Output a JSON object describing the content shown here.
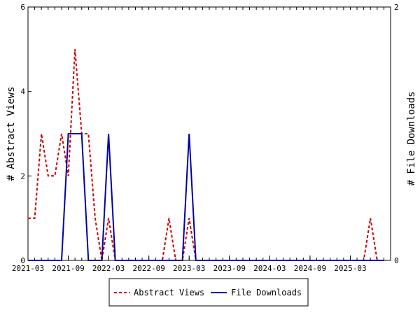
{
  "chart_data": {
    "type": "line",
    "title": "",
    "y_left": {
      "label": "# Abstract Views",
      "range": [
        0,
        6
      ],
      "ticks": [
        "0",
        "2",
        "4",
        "6"
      ]
    },
    "y_right": {
      "label": "# File Downloads",
      "range": [
        0,
        2
      ],
      "ticks": [
        "0",
        "2"
      ]
    },
    "x": {
      "start": "2021-03",
      "end": "2025-08",
      "tick_labels": [
        "2021-03",
        "2021-09",
        "2022-03",
        "2022-09",
        "2023-03",
        "2023-09",
        "2024-03",
        "2024-09",
        "2025-03"
      ]
    },
    "legend": {
      "placement": "bottom",
      "entries": [
        "Abstract Views",
        "File Downloads"
      ]
    },
    "colors": {
      "abstract_views": "#cc0000",
      "file_downloads": "#0000aa"
    },
    "months": [
      "2021-03",
      "2021-04",
      "2021-05",
      "2021-06",
      "2021-07",
      "2021-08",
      "2021-09",
      "2021-10",
      "2021-11",
      "2021-12",
      "2022-01",
      "2022-02",
      "2022-03",
      "2022-04",
      "2022-05",
      "2022-06",
      "2022-07",
      "2022-08",
      "2022-09",
      "2022-10",
      "2022-11",
      "2022-12",
      "2023-01",
      "2023-02",
      "2023-03",
      "2023-04",
      "2023-05",
      "2023-06",
      "2023-07",
      "2023-08",
      "2023-09",
      "2023-10",
      "2023-11",
      "2023-12",
      "2024-01",
      "2024-02",
      "2024-03",
      "2024-04",
      "2024-05",
      "2024-06",
      "2024-07",
      "2024-08",
      "2024-09",
      "2024-10",
      "2024-11",
      "2024-12",
      "2025-01",
      "2025-02",
      "2025-03",
      "2025-04",
      "2025-05",
      "2025-06",
      "2025-07",
      "2025-08"
    ],
    "series": [
      {
        "name": "Abstract Views",
        "axis": "left",
        "values": [
          1,
          1,
          3,
          2,
          2,
          3,
          2,
          5,
          3,
          3,
          1,
          0,
          1,
          0,
          0,
          0,
          0,
          0,
          0,
          0,
          0,
          1,
          0,
          0,
          1,
          0,
          0,
          0,
          0,
          0,
          0,
          0,
          0,
          0,
          0,
          0,
          0,
          0,
          0,
          0,
          0,
          0,
          0,
          0,
          0,
          0,
          0,
          0,
          0,
          0,
          0,
          1,
          0,
          0
        ]
      },
      {
        "name": "File Downloads",
        "axis": "right",
        "values": [
          0,
          0,
          0,
          0,
          0,
          0,
          1,
          1,
          1,
          0,
          0,
          0,
          1,
          0,
          0,
          0,
          0,
          0,
          0,
          0,
          0,
          0,
          0,
          0,
          1,
          0,
          0,
          0,
          0,
          0,
          0,
          0,
          0,
          0,
          0,
          0,
          0,
          0,
          0,
          0,
          0,
          0,
          0,
          0,
          0,
          0,
          0,
          0,
          0,
          0,
          0,
          0,
          0,
          0
        ]
      }
    ]
  }
}
